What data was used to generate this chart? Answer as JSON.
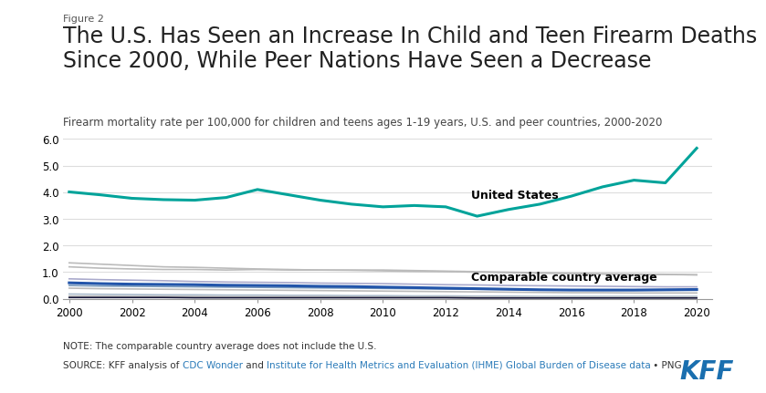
{
  "figure_label": "Figure 2",
  "title": "The U.S. Has Seen an Increase In Child and Teen Firearm Deaths\nSince 2000, While Peer Nations Have Seen a Decrease",
  "subtitle": "Firearm mortality rate per 100,000 for children and teens ages 1-19 years, U.S. and peer countries, 2000-2020",
  "note": "NOTE: The comparable country average does not include the U.S.",
  "source_plain": "SOURCE: KFF analysis of ",
  "source_link1": "CDC Wonder",
  "source_mid": " and ",
  "source_link2": "Institute for Health Metrics and Evaluation (IHME) Global Burden of Disease data",
  "source_end": " • PNG",
  "years": [
    2000,
    2001,
    2002,
    2003,
    2004,
    2005,
    2006,
    2007,
    2008,
    2009,
    2010,
    2011,
    2012,
    2013,
    2014,
    2015,
    2016,
    2017,
    2018,
    2019,
    2020
  ],
  "us_data": [
    4.01,
    3.9,
    3.77,
    3.72,
    3.7,
    3.8,
    4.1,
    3.9,
    3.7,
    3.55,
    3.45,
    3.5,
    3.45,
    3.1,
    3.35,
    3.55,
    3.85,
    4.2,
    4.45,
    4.35,
    5.65
  ],
  "comparable_avg": [
    0.6,
    0.57,
    0.55,
    0.54,
    0.53,
    0.51,
    0.5,
    0.49,
    0.47,
    0.46,
    0.44,
    0.42,
    0.4,
    0.38,
    0.36,
    0.34,
    0.33,
    0.33,
    0.33,
    0.34,
    0.35
  ],
  "peer_countries": [
    {
      "data": [
        1.35,
        1.3,
        1.25,
        1.2,
        1.18,
        1.15,
        1.12,
        1.1,
        1.08,
        1.07,
        1.05,
        1.03,
        1.02,
        1.0,
        0.98,
        0.96,
        0.95,
        0.93,
        0.92,
        0.91,
        0.9
      ],
      "color": "#bbbbbb"
    },
    {
      "data": [
        1.2,
        1.15,
        1.12,
        1.1,
        1.1,
        1.08,
        1.1,
        1.08,
        1.08,
        1.08,
        1.08,
        1.06,
        1.04,
        1.02,
        1.0,
        0.98,
        0.96,
        0.94,
        0.93,
        0.92,
        0.9
      ],
      "color": "#bbbbbb"
    },
    {
      "data": [
        0.75,
        0.72,
        0.7,
        0.68,
        0.65,
        0.63,
        0.62,
        0.61,
        0.59,
        0.58,
        0.57,
        0.55,
        0.53,
        0.52,
        0.5,
        0.49,
        0.48,
        0.47,
        0.46,
        0.45,
        0.45
      ],
      "color": "#aaaacc"
    },
    {
      "data": [
        0.5,
        0.48,
        0.47,
        0.46,
        0.45,
        0.44,
        0.43,
        0.42,
        0.41,
        0.4,
        0.39,
        0.38,
        0.37,
        0.36,
        0.35,
        0.34,
        0.33,
        0.32,
        0.32,
        0.32,
        0.32
      ],
      "color": "#7799bb"
    },
    {
      "data": [
        0.4,
        0.38,
        0.37,
        0.36,
        0.35,
        0.34,
        0.33,
        0.32,
        0.31,
        0.3,
        0.29,
        0.28,
        0.27,
        0.26,
        0.25,
        0.24,
        0.23,
        0.23,
        0.22,
        0.22,
        0.22
      ],
      "color": "#bbbbbb"
    },
    {
      "data": [
        0.18,
        0.17,
        0.16,
        0.15,
        0.15,
        0.14,
        0.14,
        0.13,
        0.13,
        0.12,
        0.12,
        0.11,
        0.11,
        0.1,
        0.1,
        0.09,
        0.09,
        0.09,
        0.09,
        0.09,
        0.09
      ],
      "color": "#aabbcc"
    },
    {
      "data": [
        0.1,
        0.1,
        0.09,
        0.09,
        0.09,
        0.08,
        0.08,
        0.08,
        0.08,
        0.07,
        0.07,
        0.07,
        0.07,
        0.07,
        0.06,
        0.06,
        0.06,
        0.06,
        0.06,
        0.06,
        0.06
      ],
      "color": "#bbbbbb"
    },
    {
      "data": [
        0.05,
        0.05,
        0.05,
        0.05,
        0.04,
        0.04,
        0.04,
        0.04,
        0.04,
        0.04,
        0.04,
        0.04,
        0.04,
        0.03,
        0.03,
        0.03,
        0.03,
        0.03,
        0.03,
        0.03,
        0.03
      ],
      "color": "#111133"
    }
  ],
  "us_color": "#00a39a",
  "comparable_color": "#2255aa",
  "background_color": "#ffffff",
  "ylim": [
    0,
    6.0
  ],
  "yticks": [
    0.0,
    1.0,
    2.0,
    3.0,
    4.0,
    5.0,
    6.0
  ],
  "xticks": [
    2000,
    2002,
    2004,
    2006,
    2008,
    2010,
    2012,
    2014,
    2016,
    2018,
    2020
  ],
  "us_label": "United States",
  "comparable_label": "Comparable country average",
  "link_color": "#2b7bb9",
  "kff_color": "#1a6faf",
  "title_fontsize": 17,
  "subtitle_fontsize": 8.5,
  "note_fontsize": 7.5
}
